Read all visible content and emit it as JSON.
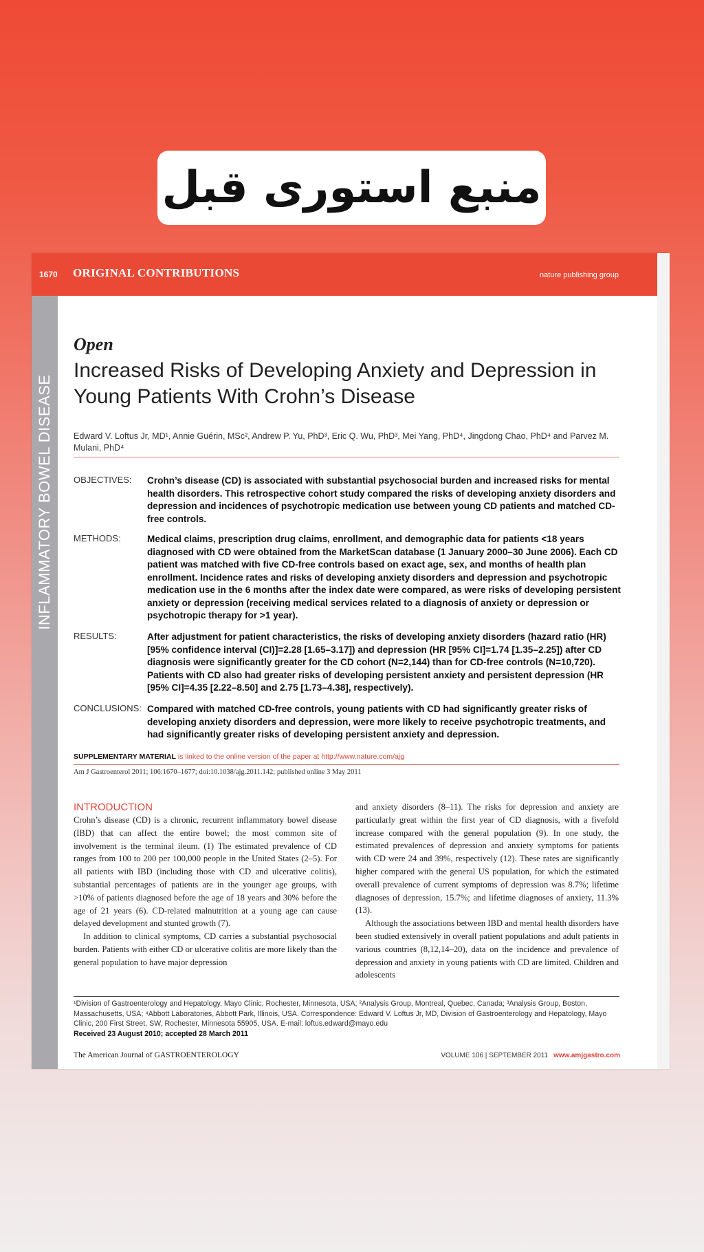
{
  "banner": {
    "text": "منبع استوری قبل"
  },
  "header": {
    "page_number": "1670",
    "section": "ORIGINAL CONTRIBUTIONS",
    "publisher": "nature publishing group"
  },
  "sidebar": {
    "label": "INFLAMMATORY BOWEL DISEASE"
  },
  "article": {
    "open_label": "Open",
    "title": "Increased Risks of Developing Anxiety and Depression in Young Patients With Crohn’s Disease",
    "authors": "Edward V. Loftus Jr, MD¹, Annie Guérin, MSc², Andrew P. Yu, PhD³, Eric Q. Wu, PhD³, Mei Yang, PhD⁴, Jingdong Chao, PhD⁴ and Parvez M. Mulani, PhD⁴",
    "abstract": {
      "objectives_label": "OBJECTIVES:",
      "objectives": "Crohn’s disease (CD) is associated with substantial psychosocial burden and increased risks for mental health disorders. This retrospective cohort study compared the risks of developing anxiety disorders and depression and incidences of psychotropic medication use between young CD patients and matched CD-free controls.",
      "methods_label": "METHODS:",
      "methods": "Medical claims, prescription drug claims, enrollment, and demographic data for patients <18 years diagnosed with CD were obtained from the MarketScan database (1 January 2000–30 June 2006). Each CD patient was matched with five CD-free controls based on exact age, sex, and months of health plan enrollment. Incidence rates and risks of developing anxiety disorders and depression and psychotropic medication use in the 6 months after the index date were compared, as were risks of developing persistent anxiety or depression (receiving medical services related to a diagnosis of anxiety or depression or psychotropic therapy for >1 year).",
      "results_label": "RESULTS:",
      "results": "After adjustment for patient characteristics, the risks of developing anxiety disorders (hazard ratio (HR) [95% confidence interval (CI)]=2.28 [1.65–3.17]) and depression (HR [95% CI]=1.74 [1.35–2.25]) after CD diagnosis were significantly greater for the CD cohort (N=2,144) than for CD-free controls (N=10,720). Patients with CD also had greater risks of developing persistent anxiety and persistent depression (HR [95% CI]=4.35 [2.22–8.50] and 2.75 [1.73–4.38], respectively).",
      "conclusions_label": "CONCLUSIONS:",
      "conclusions": "Compared with matched CD-free controls, young patients with CD had significantly greater risks of developing anxiety disorders and depression, were more likely to receive psychotropic treatments, and had significantly greater risks of developing persistent anxiety and depression."
    },
    "supplementary_label": "SUPPLEMENTARY MATERIAL",
    "supplementary_text": " is linked to the online version of the paper at http://www.nature.com/ajg",
    "citation": "Am J Gastroenterol 2011; 106:1670–1677; doi:10.1038/ajg.2011.142; published online 3 May 2011",
    "intro_heading": "INTRODUCTION",
    "col1_p1": "Crohn’s disease (CD) is a chronic, recurrent inflammatory bowel disease (IBD) that can affect the entire bowel; the most common site of involvement is the terminal ileum. (1) The estimated prevalence of CD ranges from 100 to 200 per 100,000 people in the United States (2–5). For all patients with IBD (including those with CD and ulcerative colitis), substantial percentages of patients are in the younger age groups, with >10% of patients diagnosed before the age of 18 years and 30% before the age of 21 years (6). CD-related malnutrition at a young age can cause delayed development and stunted growth (7).",
    "col1_p2": "In addition to clinical symptoms, CD carries a substantial psychosocial burden. Patients with either CD or ulcerative colitis are more likely than the general population to have major depression",
    "col2_p1": "and anxiety disorders (8–11). The risks for depression and anxiety are particularly great within the first year of CD diagnosis, with a fivefold increase compared with the general population (9). In one study, the estimated prevalences of depression and anxiety symptoms for patients with CD were 24 and 39%, respectively (12). These rates are significantly higher compared with the general US population, for which the estimated overall prevalence of current symptoms of depression was 8.7%; lifetime diagnoses of depression, 15.7%; and lifetime diagnoses of anxiety, 11.3% (13).",
    "col2_p2": "Although the associations between IBD and mental health disorders have been studied extensively in overall patient populations and adult patients in various countries (8,12,14–20), data on the incidence and prevalence of depression and anxiety in young patients with CD are limited. Children and adolescents",
    "footnote": "¹Division of Gastroenterology and Hepatology, Mayo Clinic, Rochester, Minnesota, USA; ²Analysis Group, Montreal, Quebec, Canada; ³Analysis Group, Boston, Massachusetts, USA; ⁴Abbott Laboratories, Abbott Park, Illinois, USA. Correspondence: Edward V. Loftus Jr, MD, Division of Gastroenterology and Hepatology, Mayo Clinic, 200 First Street, SW, Rochester, Minnesota 55905, USA. E-mail: loftus.edward@mayo.edu",
    "received": "Received 23 August 2010; accepted 28 March 2011"
  },
  "footer": {
    "journal": "The American Journal of GASTROENTEROLOGY",
    "volume": "VOLUME 106 | SEPTEMBER 2011",
    "url": "www.amjgastro.com"
  }
}
